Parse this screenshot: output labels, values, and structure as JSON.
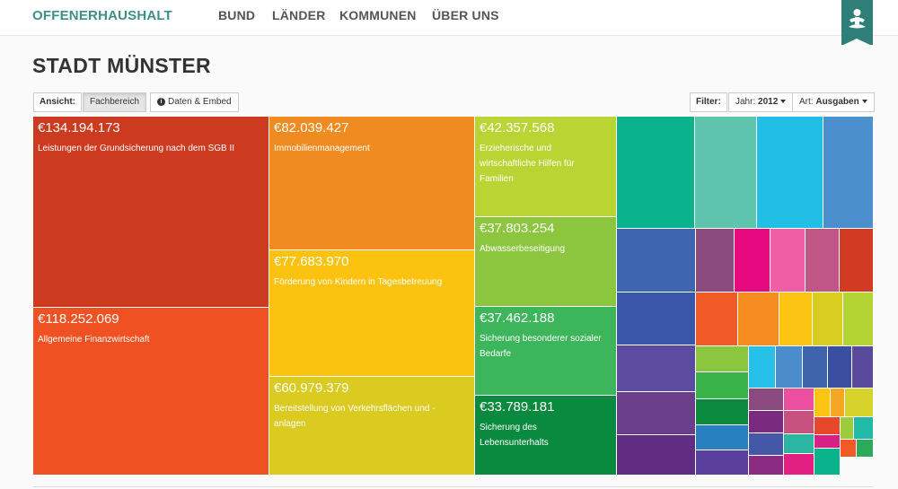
{
  "nav": {
    "brand": "OFFENERHAUSHALT",
    "items": [
      "BUND",
      "LÄNDER",
      "KOMMUNEN",
      "ÜBER UNS"
    ]
  },
  "page": {
    "title": "STADT MÜNSTER"
  },
  "toolbar": {
    "ansicht_label": "Ansicht:",
    "fachbereich_button": "Fachbereich",
    "daten_button": "Daten & Embed",
    "filter_label": "Filter:",
    "jahr_label": "Jahr:",
    "jahr_value": "2012",
    "art_label": "Art:",
    "art_value": "Ausgaben"
  },
  "treemap": {
    "labeled": [
      {
        "amount": "€134.194.173",
        "label": "Leistungen der Grundsicherung nach dem SGB II",
        "color": "#cc3b20"
      },
      {
        "amount": "€118.252.069",
        "label": "Allgemeine Finanzwirtschaft",
        "color": "#ef5122"
      },
      {
        "amount": "€82.039.427",
        "label": "Immobilienmanagement",
        "color": "#f08b22"
      },
      {
        "amount": "€77.683.970",
        "label": "Förderung von Kindern in Tagesbetreuung",
        "color": "#fbc30f"
      },
      {
        "amount": "€60.979.379",
        "label": "Bereitstellung von Verkehrsflächen und -anlagen",
        "color": "#dbca20"
      },
      {
        "amount": "€42.357.568",
        "label": "Erzieherische und wirtschaftliche Hilfen für Familien",
        "color": "#b9d433"
      },
      {
        "amount": "€37.803.254",
        "label": "Abwasserbeseitigung",
        "color": "#8cc63f"
      },
      {
        "amount": "€37.462.188",
        "label": "Sicherung besonderer sozialer Bedarfe",
        "color": "#3db55a"
      },
      {
        "amount": "€33.789.181",
        "label": "Sicherung des Lebensunterhalts",
        "color": "#0a8a3f"
      }
    ],
    "small_colors": [
      "#0bb38c",
      "#5fc4ad",
      "#21bfe6",
      "#4c8fce",
      "#3e65b0",
      "#8a4a7d",
      "#e6097f",
      "#ef5fa6",
      "#c05686",
      "#d23a24",
      "#3a56a8",
      "#f15a27",
      "#f68b1f",
      "#fbc413",
      "#d9cd22",
      "#b3d334",
      "#5b4ca0",
      "#8cc63f",
      "#27c0e8",
      "#4a8ccc",
      "#3f63ac",
      "#3a4fa0",
      "#5a4a9e",
      "#6a3e8a",
      "#3ab44a",
      "#8b4a7f",
      "#ed4fa0",
      "#fbc413",
      "#f5a623",
      "#d8d32c",
      "#612d82",
      "#0c8a3e",
      "#7b2b7f",
      "#c8527f",
      "#e7472a",
      "#9ccb3b",
      "#21b9a8",
      "#2a7fc0",
      "#4558a8",
      "#2bb6a4",
      "#d71f85",
      "#f15a24",
      "#2da95a",
      "#5b3f9e",
      "#8b2c83",
      "#e31f84"
    ]
  }
}
